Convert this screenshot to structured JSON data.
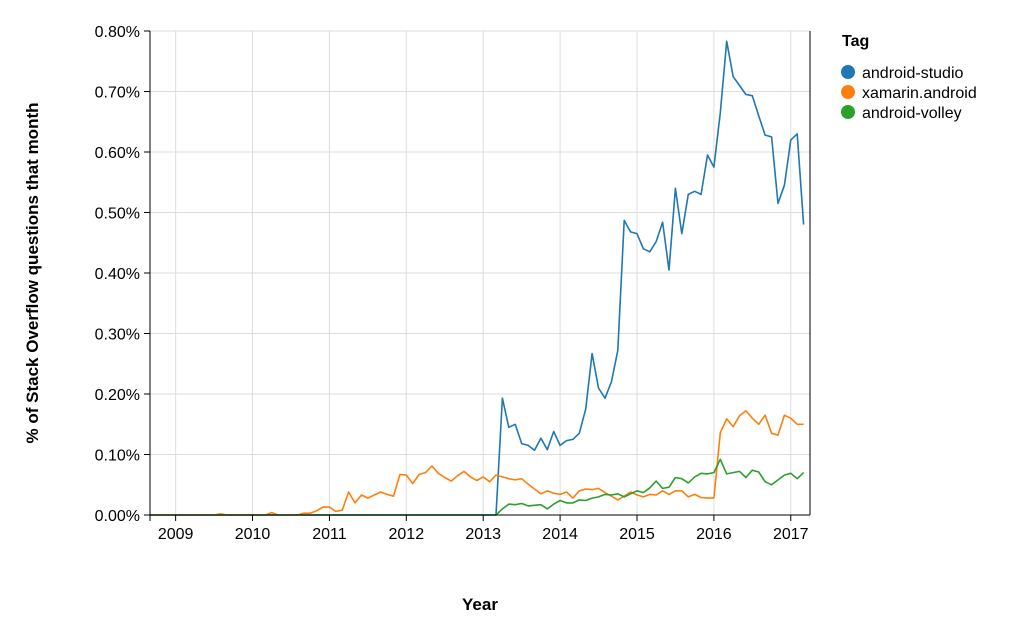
{
  "chart_data": {
    "type": "line",
    "xlabel": "Year",
    "ylabel": "% of Stack Overflow questions that month",
    "x_ticks": [
      "2009",
      "2010",
      "2011",
      "2012",
      "2013",
      "2014",
      "2015",
      "2016",
      "2017"
    ],
    "y_ticks": [
      "0.00%",
      "0.10%",
      "0.20%",
      "0.30%",
      "0.40%",
      "0.50%",
      "0.60%",
      "0.70%",
      "0.80%"
    ],
    "xlim": [
      "2008-09",
      "2017-04"
    ],
    "ylim": [
      0,
      0.8
    ],
    "grid": true,
    "legend": {
      "title": "Tag",
      "position": "right"
    },
    "series": [
      {
        "name": "android-studio",
        "color": "#1f77b4",
        "x": [
          "2008-09",
          "2012-12",
          "2013-01",
          "2013-02",
          "2013-03",
          "2013-04",
          "2013-05",
          "2013-06",
          "2013-07",
          "2013-08",
          "2013-09",
          "2013-10",
          "2013-11",
          "2013-12",
          "2014-01",
          "2014-02",
          "2014-03",
          "2014-04",
          "2014-05",
          "2014-06",
          "2014-07",
          "2014-08",
          "2014-09",
          "2014-10",
          "2014-11",
          "2014-12",
          "2015-01",
          "2015-02",
          "2015-03",
          "2015-04",
          "2015-05",
          "2015-06",
          "2015-07",
          "2015-08",
          "2015-09",
          "2015-10",
          "2015-11",
          "2015-12",
          "2016-01",
          "2016-02",
          "2016-03",
          "2016-04",
          "2016-05",
          "2016-06",
          "2016-07",
          "2016-08",
          "2016-09",
          "2016-10",
          "2016-11",
          "2016-12",
          "2017-01",
          "2017-02",
          "2017-03"
        ],
        "y": [
          0,
          0,
          0,
          0,
          0,
          0.193,
          0.145,
          0.15,
          0.118,
          0.115,
          0.107,
          0.127,
          0.108,
          0.138,
          0.115,
          0.123,
          0.125,
          0.135,
          0.175,
          0.267,
          0.21,
          0.193,
          0.22,
          0.272,
          0.487,
          0.468,
          0.465,
          0.44,
          0.435,
          0.452,
          0.484,
          0.405,
          0.54,
          0.465,
          0.53,
          0.535,
          0.53,
          0.595,
          0.575,
          0.665,
          0.783,
          0.725,
          0.71,
          0.695,
          0.693,
          0.66,
          0.628,
          0.625,
          0.515,
          0.545,
          0.62,
          0.63,
          0.48
        ]
      },
      {
        "name": "xamarin.android",
        "color": "#ff7f0e",
        "x": [
          "2008-09",
          "2009-07",
          "2009-08",
          "2009-09",
          "2010-03",
          "2010-04",
          "2010-05",
          "2010-08",
          "2010-09",
          "2010-10",
          "2010-11",
          "2010-12",
          "2011-01",
          "2011-02",
          "2011-03",
          "2011-04",
          "2011-05",
          "2011-06",
          "2011-07",
          "2011-08",
          "2011-09",
          "2011-10",
          "2011-11",
          "2011-12",
          "2012-01",
          "2012-02",
          "2012-03",
          "2012-04",
          "2012-05",
          "2012-06",
          "2012-07",
          "2012-08",
          "2012-09",
          "2012-10",
          "2012-11",
          "2012-12",
          "2013-01",
          "2013-02",
          "2013-03",
          "2013-04",
          "2013-05",
          "2013-06",
          "2013-07",
          "2013-08",
          "2013-09",
          "2013-10",
          "2013-11",
          "2013-12",
          "2014-01",
          "2014-02",
          "2014-03",
          "2014-04",
          "2014-05",
          "2014-06",
          "2014-07",
          "2014-08",
          "2014-09",
          "2014-10",
          "2014-11",
          "2014-12",
          "2015-01",
          "2015-02",
          "2015-03",
          "2015-04",
          "2015-05",
          "2015-06",
          "2015-07",
          "2015-08",
          "2015-09",
          "2015-10",
          "2015-11",
          "2015-12",
          "2016-01",
          "2016-02",
          "2016-03",
          "2016-04",
          "2016-05",
          "2016-06",
          "2016-07",
          "2016-08",
          "2016-09",
          "2016-10",
          "2016-11",
          "2016-12",
          "2017-01",
          "2017-02",
          "2017-03"
        ],
        "y": [
          0,
          0,
          0.002,
          0,
          0,
          0.004,
          0,
          0,
          0.003,
          0.003,
          0.007,
          0.013,
          0.013,
          0.006,
          0.008,
          0.038,
          0.02,
          0.033,
          0.028,
          0.033,
          0.038,
          0.034,
          0.031,
          0.067,
          0.066,
          0.052,
          0.067,
          0.07,
          0.081,
          0.069,
          0.062,
          0.056,
          0.065,
          0.072,
          0.063,
          0.057,
          0.063,
          0.055,
          0.066,
          0.063,
          0.06,
          0.058,
          0.06,
          0.051,
          0.043,
          0.035,
          0.04,
          0.036,
          0.034,
          0.038,
          0.028,
          0.04,
          0.043,
          0.042,
          0.044,
          0.037,
          0.031,
          0.025,
          0.031,
          0.038,
          0.033,
          0.03,
          0.034,
          0.033,
          0.04,
          0.034,
          0.04,
          0.04,
          0.03,
          0.034,
          0.029,
          0.028,
          0.028,
          0.136,
          0.159,
          0.146,
          0.164,
          0.172,
          0.16,
          0.15,
          0.165,
          0.135,
          0.132,
          0.165,
          0.16,
          0.15,
          0.15
        ]
      },
      {
        "name": "android-volley",
        "color": "#2ca02c",
        "x": [
          "2008-09",
          "2013-03",
          "2013-04",
          "2013-05",
          "2013-06",
          "2013-07",
          "2013-08",
          "2013-09",
          "2013-10",
          "2013-11",
          "2013-12",
          "2014-01",
          "2014-02",
          "2014-03",
          "2014-04",
          "2014-05",
          "2014-06",
          "2014-07",
          "2014-08",
          "2014-09",
          "2014-10",
          "2014-11",
          "2014-12",
          "2015-01",
          "2015-02",
          "2015-03",
          "2015-04",
          "2015-05",
          "2015-06",
          "2015-07",
          "2015-08",
          "2015-09",
          "2015-10",
          "2015-11",
          "2015-12",
          "2016-01",
          "2016-02",
          "2016-03",
          "2016-04",
          "2016-05",
          "2016-06",
          "2016-07",
          "2016-08",
          "2016-09",
          "2016-10",
          "2016-11",
          "2016-12",
          "2017-01",
          "2017-02",
          "2017-03"
        ],
        "y": [
          0,
          0,
          0.01,
          0.018,
          0.017,
          0.019,
          0.015,
          0.016,
          0.017,
          0.01,
          0.018,
          0.024,
          0.02,
          0.02,
          0.025,
          0.024,
          0.028,
          0.03,
          0.034,
          0.033,
          0.035,
          0.03,
          0.035,
          0.04,
          0.037,
          0.045,
          0.056,
          0.044,
          0.046,
          0.062,
          0.06,
          0.053,
          0.063,
          0.069,
          0.068,
          0.07,
          0.092,
          0.068,
          0.07,
          0.072,
          0.062,
          0.074,
          0.071,
          0.055,
          0.05,
          0.058,
          0.066,
          0.069,
          0.06,
          0.07
        ]
      }
    ]
  }
}
